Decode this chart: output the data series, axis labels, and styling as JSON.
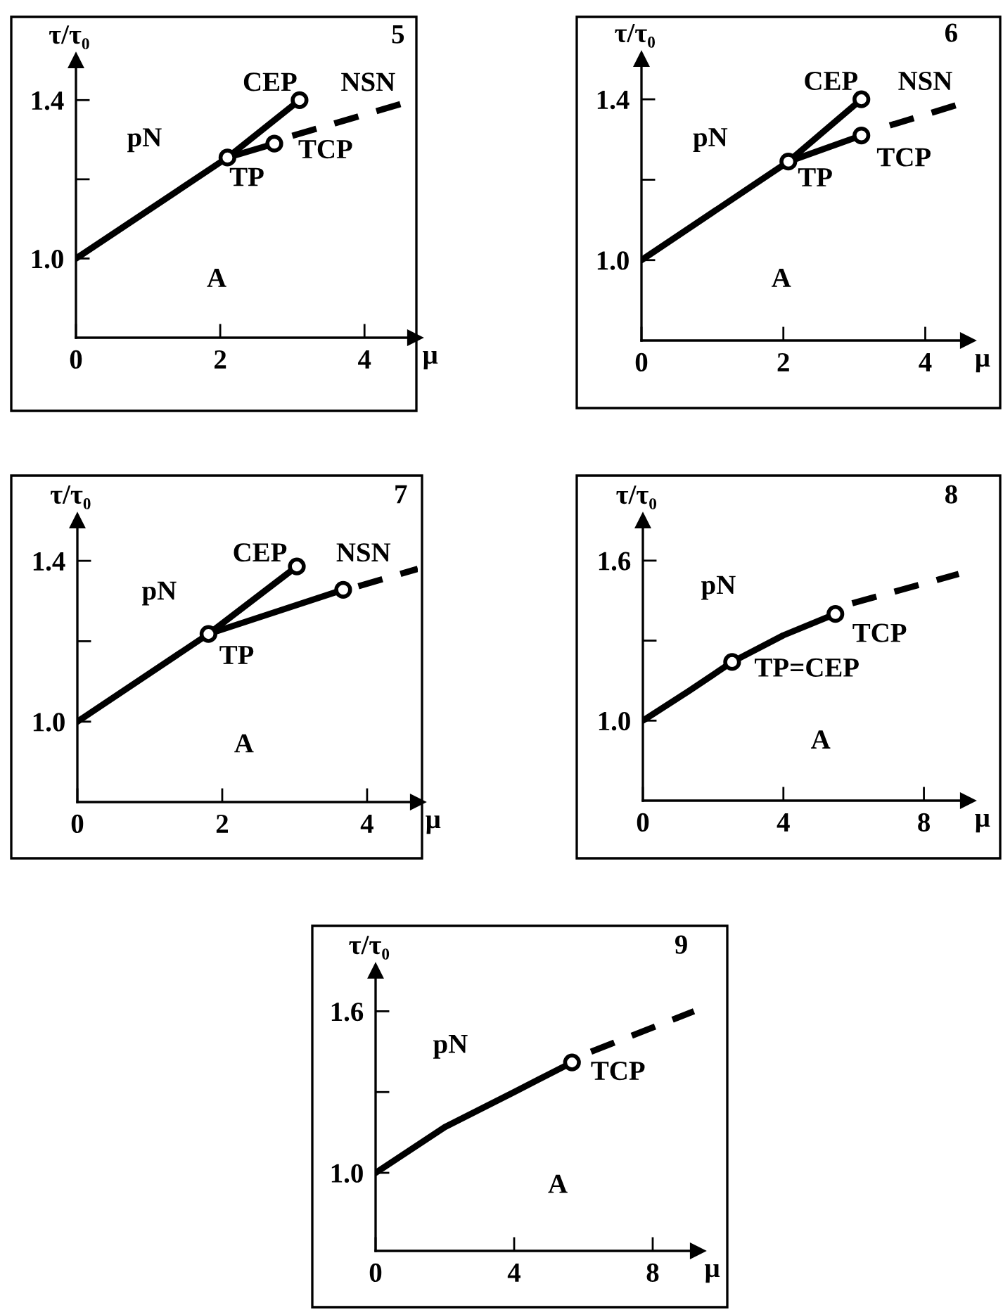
{
  "chart_data": [
    {
      "type": "line",
      "title": "5",
      "xlabel": "μ",
      "ylabel": "τ/τ₀",
      "xlim": [
        0,
        4.7
      ],
      "ylim": [
        0.8,
        1.5
      ],
      "xticks": [
        0,
        2,
        4
      ],
      "yticks": [
        {
          "value": 1.0,
          "label": "1.0"
        },
        {
          "value": 1.2,
          "label": null
        },
        {
          "value": 1.4,
          "label": "1.4"
        }
      ],
      "series": [
        {
          "color": "#000000",
          "line_style": "solid",
          "x": [
            0,
            2.1
          ],
          "values": [
            1.0,
            1.255
          ]
        },
        {
          "color": "#000000",
          "line_style": "solid",
          "x": [
            2.1,
            3.1
          ],
          "values": [
            1.255,
            1.4
          ]
        },
        {
          "color": "#000000",
          "line_style": "solid",
          "x": [
            2.1,
            2.75
          ],
          "values": [
            1.255,
            1.29
          ]
        },
        {
          "color": "#000000",
          "line_style": "dashed",
          "x": [
            3.0,
            4.5
          ],
          "values": [
            1.31,
            1.39
          ]
        },
        {
          "type": "scatter",
          "color": "#000000",
          "marker": "circle",
          "x": [
            2.1,
            3.1,
            2.75
          ],
          "values": [
            1.255,
            1.4,
            1.29
          ]
        }
      ],
      "annotations": [
        "CEP",
        "NSN",
        "TCP",
        "TP",
        "pN",
        "A"
      ]
    },
    {
      "type": "line",
      "title": "6",
      "xlabel": "μ",
      "ylabel": "τ/τ₀",
      "xlim": [
        0,
        4.6
      ],
      "ylim": [
        0.8,
        1.5
      ],
      "xticks": [
        0,
        2,
        4
      ],
      "yticks": [
        {
          "value": 1.0,
          "label": "1.0"
        },
        {
          "value": 1.2,
          "label": null
        },
        {
          "value": 1.4,
          "label": "1.4"
        }
      ],
      "series": [
        {
          "color": "#000000",
          "line_style": "solid",
          "x": [
            0,
            2.07
          ],
          "values": [
            1.0,
            1.245
          ]
        },
        {
          "color": "#000000",
          "line_style": "solid",
          "x": [
            2.07,
            3.1
          ],
          "values": [
            1.245,
            1.4
          ]
        },
        {
          "color": "#000000",
          "line_style": "solid",
          "x": [
            2.07,
            3.1
          ],
          "values": [
            1.245,
            1.31
          ]
        },
        {
          "color": "#000000",
          "line_style": "dashed",
          "x": [
            3.5,
            4.43
          ],
          "values": [
            1.335,
            1.385
          ]
        },
        {
          "type": "scatter",
          "color": "#000000",
          "marker": "circle",
          "x": [
            2.07,
            3.1,
            3.1
          ],
          "values": [
            1.245,
            1.4,
            1.31
          ]
        }
      ],
      "annotations": [
        "CEP",
        "NSN",
        "TCP",
        "TP",
        "pN",
        "A"
      ]
    },
    {
      "type": "line",
      "title": "7",
      "xlabel": "μ",
      "ylabel": "τ/τ₀",
      "xlim": [
        0,
        4.7
      ],
      "ylim": [
        0.8,
        1.5
      ],
      "xticks": [
        0,
        2,
        4
      ],
      "yticks": [
        {
          "value": 1.0,
          "label": "1.0"
        },
        {
          "value": 1.2,
          "label": null
        },
        {
          "value": 1.4,
          "label": "1.4"
        }
      ],
      "series": [
        {
          "color": "#000000",
          "line_style": "solid",
          "x": [
            0,
            1.81
          ],
          "values": [
            1.0,
            1.218
          ]
        },
        {
          "color": "#000000",
          "line_style": "solid",
          "x": [
            1.81,
            3.03
          ],
          "values": [
            1.218,
            1.386
          ]
        },
        {
          "color": "#000000",
          "line_style": "solid",
          "x": [
            1.81,
            3.67
          ],
          "values": [
            1.218,
            1.328
          ]
        },
        {
          "color": "#000000",
          "line_style": "dashed",
          "x": [
            3.88,
            4.7
          ],
          "values": [
            1.337,
            1.38
          ]
        },
        {
          "type": "scatter",
          "color": "#000000",
          "marker": "circle",
          "x": [
            1.81,
            3.03,
            3.67
          ],
          "values": [
            1.218,
            1.386,
            1.328
          ]
        }
      ],
      "annotations": [
        "CEP",
        "NSN",
        "TP",
        "pN",
        "A"
      ]
    },
    {
      "type": "line",
      "title": "8",
      "xlabel": "μ",
      "ylabel": "τ/τ₀",
      "xlim": [
        0,
        9.25
      ],
      "ylim": [
        0.7,
        1.75
      ],
      "xticks": [
        0,
        4,
        8
      ],
      "yticks": [
        {
          "value": 1.0,
          "label": "1.0"
        },
        {
          "value": 1.3,
          "label": null
        },
        {
          "value": 1.6,
          "label": "1.6"
        }
      ],
      "series": [
        {
          "color": "#000000",
          "line_style": "solid",
          "x": [
            0,
            1.3,
            2.54,
            4.0,
            5.48
          ],
          "values": [
            1.0,
            1.11,
            1.22,
            1.32,
            1.4
          ]
        },
        {
          "color": "#000000",
          "line_style": "dashed",
          "x": [
            5.96,
            8.99
          ],
          "values": [
            1.44,
            1.55
          ]
        },
        {
          "type": "scatter",
          "color": "#000000",
          "marker": "circle",
          "x": [
            2.54,
            5.48
          ],
          "values": [
            1.22,
            1.4
          ]
        }
      ],
      "annotations": [
        "TCP",
        "TP=CEP",
        "pN",
        "A"
      ]
    },
    {
      "type": "line",
      "title": "9",
      "xlabel": "μ",
      "ylabel": "τ/τ₀",
      "xlim": [
        0,
        9.3
      ],
      "ylim": [
        0.71,
        1.75
      ],
      "xticks": [
        0,
        4,
        8
      ],
      "yticks": [
        {
          "value": 1.0,
          "label": "1.0"
        },
        {
          "value": 1.3,
          "label": null
        },
        {
          "value": 1.6,
          "label": "1.6"
        }
      ],
      "series": [
        {
          "color": "#000000",
          "line_style": "solid",
          "x": [
            0,
            2.0,
            4.0,
            5.67
          ],
          "values": [
            1.0,
            1.17,
            1.3,
            1.41
          ]
        },
        {
          "color": "#000000",
          "line_style": "dashed",
          "x": [
            6.22,
            9.19
          ],
          "values": [
            1.45,
            1.6
          ]
        },
        {
          "type": "scatter",
          "color": "#000000",
          "marker": "circle",
          "x": [
            5.67
          ],
          "values": [
            1.41
          ]
        }
      ],
      "annotations": [
        "TCP",
        "pN",
        "A"
      ]
    }
  ]
}
